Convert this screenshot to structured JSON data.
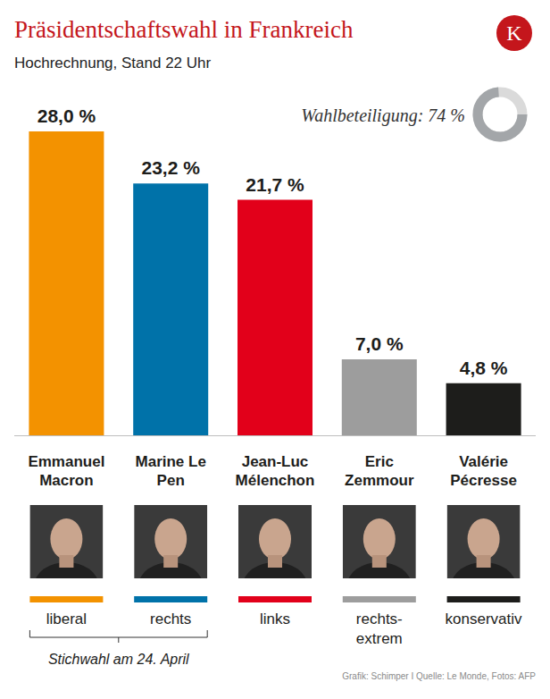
{
  "chart_data": {
    "type": "bar",
    "title": "Präsidentschaftswahl in Frankreich",
    "subtitle": "Hochrechnung, Stand 22 Uhr",
    "logo": "K",
    "categories": [
      "Emmanuel Macron",
      "Marine Le Pen",
      "Jean-Luc Mélenchon",
      "Eric Zemmour",
      "Valérie Pécresse"
    ],
    "values": [
      28.0,
      23.2,
      21.7,
      7.0,
      4.8
    ],
    "value_labels": [
      "28,0 %",
      "23,2 %",
      "21,7 %",
      "7,0 %",
      "4,8 %"
    ],
    "colors": [
      "#f39200",
      "#0072a9",
      "#e2001a",
      "#9d9d9d",
      "#1d1d1b"
    ],
    "parties": [
      "liberal",
      "rechts",
      "links",
      "rechts-extrem",
      "konservativ"
    ],
    "ylim": [
      0,
      28
    ],
    "tick_labels": false,
    "grid": false,
    "data_labels": true,
    "turnout": {
      "text": "Wahlbeteiligung: 74 %",
      "value": 74
    },
    "runoff": {
      "text": "Stichwahl am 24. April",
      "categories": [
        "Emmanuel Macron",
        "Marine Le Pen"
      ]
    },
    "source": "Grafik: Schimper I Quelle: Le Monde, Fotos: AFP"
  }
}
